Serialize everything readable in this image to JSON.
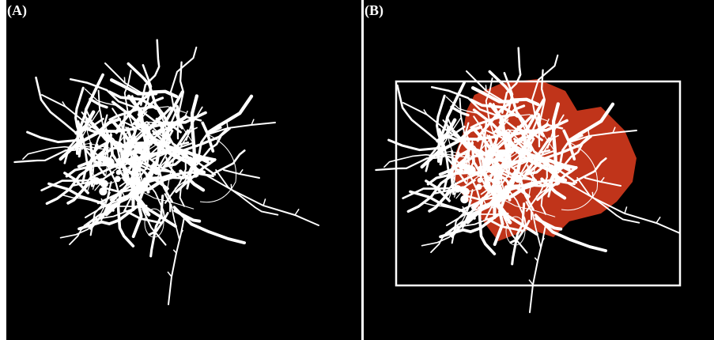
{
  "panels": [
    {
      "label": "(A)",
      "description_id": "skeleton-only"
    },
    {
      "label": "(B)",
      "description_id": "skeleton-with-area"
    }
  ],
  "colors": {
    "background": "#000000",
    "filament": "#ffffff",
    "area_fill": "#c0341a",
    "bounding_box": "#ffffff",
    "divider": "#ffffff"
  }
}
